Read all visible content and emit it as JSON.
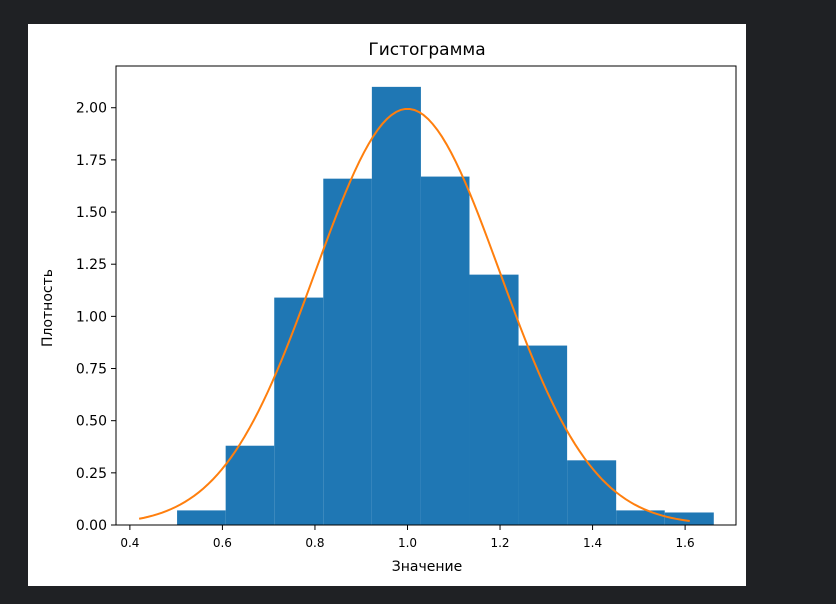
{
  "chart_data": {
    "type": "bar",
    "title": "Гистограмма",
    "xlabel": "Значение",
    "ylabel": "Плотность",
    "xlim": [
      0.37,
      1.71
    ],
    "ylim": [
      0,
      2.2
    ],
    "xticks": [
      0.4,
      0.6,
      0.8,
      1.0,
      1.2,
      1.4,
      1.6
    ],
    "xtick_labels": [
      "0.4",
      "0.6",
      "0.8",
      "1.0",
      "1.2",
      "1.4",
      "1.6"
    ],
    "yticks": [
      0,
      0.25,
      0.5,
      0.75,
      1.0,
      1.25,
      1.5,
      1.75,
      2.0
    ],
    "ytick_labels": [
      "0.00",
      "0.25",
      "0.50",
      "0.75",
      "1.00",
      "1.25",
      "1.50",
      "1.75",
      "2.00"
    ],
    "grid": false,
    "bins": [
      {
        "x0": 0.502,
        "x1": 0.607,
        "value": 0.07
      },
      {
        "x0": 0.607,
        "x1": 0.712,
        "value": 0.38
      },
      {
        "x0": 0.712,
        "x1": 0.818,
        "value": 1.09
      },
      {
        "x0": 0.818,
        "x1": 0.923,
        "value": 1.66
      },
      {
        "x0": 0.923,
        "x1": 1.029,
        "value": 2.1
      },
      {
        "x0": 1.029,
        "x1": 1.134,
        "value": 1.67
      },
      {
        "x0": 1.134,
        "x1": 1.24,
        "value": 1.2
      },
      {
        "x0": 1.24,
        "x1": 1.345,
        "value": 0.86
      },
      {
        "x0": 1.345,
        "x1": 1.451,
        "value": 0.31
      },
      {
        "x0": 1.451,
        "x1": 1.556,
        "value": 0.07
      },
      {
        "x0": 1.556,
        "x1": 1.662,
        "value": 0.06
      }
    ],
    "curve": {
      "type": "normal-pdf",
      "mean": 1.0,
      "std": 0.2,
      "x_range": [
        0.42,
        1.61
      ],
      "color": "#ff7f0e"
    },
    "bar_color": "#1f77b4"
  }
}
